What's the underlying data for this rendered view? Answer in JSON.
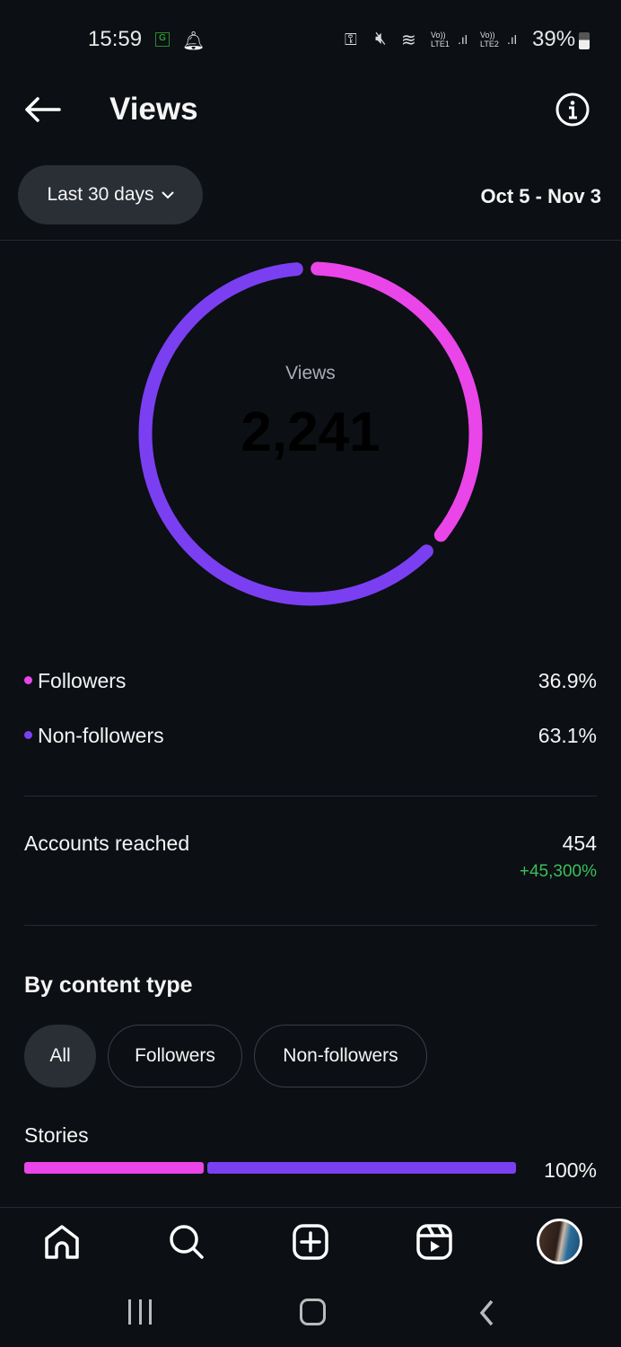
{
  "status_bar": {
    "time": "15:59",
    "battery": "39%",
    "lte1": "LTE1",
    "lte2": "LTE2",
    "volte": "Vo))"
  },
  "header": {
    "title": "Views",
    "back_icon": "arrow-left-icon",
    "info_icon": "info-icon"
  },
  "filter": {
    "period": "Last 30 days",
    "date_range": "Oct 5 - Nov 3"
  },
  "donut": {
    "label": "Views",
    "total": "2,241",
    "segments": [
      {
        "name": "Followers",
        "percent": 36.9,
        "color": "#ea45e8"
      },
      {
        "name": "Non-followers",
        "percent": 63.1,
        "color": "#7b3ff2"
      }
    ]
  },
  "legend": [
    {
      "label": "Followers",
      "value": "36.9%",
      "color": "#ea45e8"
    },
    {
      "label": "Non-followers",
      "value": "63.1%",
      "color": "#7b3ff2"
    }
  ],
  "accounts_reached": {
    "label": "Accounts reached",
    "value": "454",
    "change": "+45,300%",
    "change_color": "#3bbf5a"
  },
  "content_type": {
    "title": "By content type",
    "chips": [
      {
        "label": "All",
        "selected": true
      },
      {
        "label": "Followers",
        "selected": false
      },
      {
        "label": "Non-followers",
        "selected": false
      }
    ],
    "rows": [
      {
        "label": "Stories",
        "value": "100%",
        "followers_share": 36.9
      }
    ]
  },
  "bottom_nav": [
    "home-icon",
    "search-icon",
    "create-icon",
    "reels-icon",
    "profile-avatar"
  ]
}
